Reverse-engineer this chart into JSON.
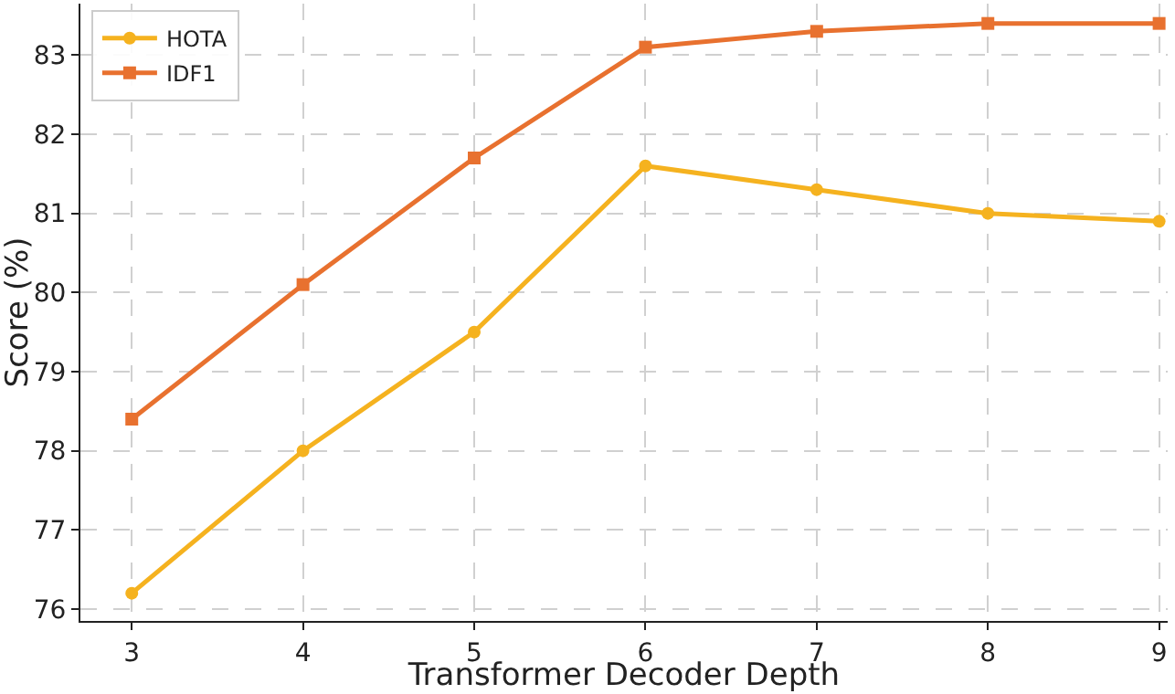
{
  "chart_data": {
    "type": "line",
    "xlabel": "Transformer Decoder Depth",
    "ylabel": "Score (%)",
    "x": [
      3,
      4,
      5,
      6,
      7,
      8,
      9
    ],
    "series": [
      {
        "name": "HOTA",
        "color": "#f5b21f",
        "marker": "circle",
        "values": [
          76.2,
          78.0,
          79.5,
          81.6,
          81.3,
          81.0,
          80.9
        ]
      },
      {
        "name": "IDF1",
        "color": "#e8712f",
        "marker": "square",
        "values": [
          78.4,
          80.1,
          81.7,
          83.1,
          83.3,
          83.4,
          83.4
        ]
      }
    ],
    "xlim": [
      2.7,
      9.05
    ],
    "xticks": [
      3,
      4,
      5,
      6,
      7,
      8,
      9
    ],
    "ylim": [
      75.85,
      83.65
    ],
    "yticks": [
      76,
      77,
      78,
      79,
      80,
      81,
      82,
      83
    ],
    "grid": true,
    "legend": "top left",
    "line_style": "solid"
  }
}
